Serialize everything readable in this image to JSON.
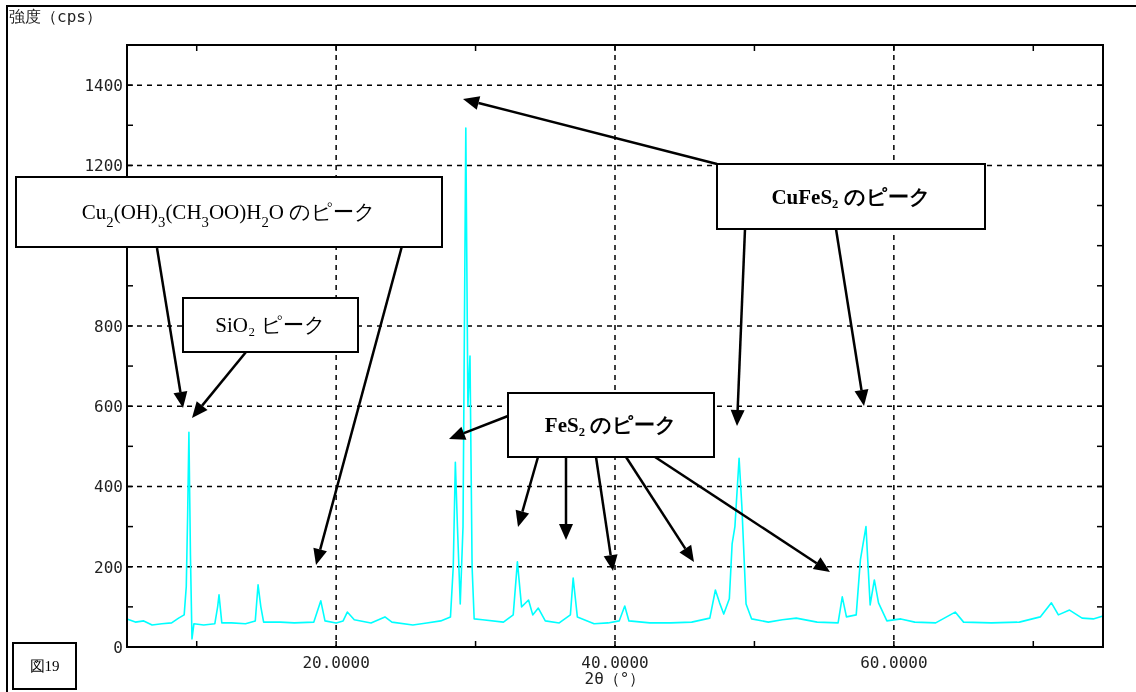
{
  "chart_data": {
    "type": "line",
    "xlabel": "2θ（°）",
    "ylabel": "強度（cps）",
    "x": [
      5,
      5.6,
      6.2,
      6.8,
      7.5,
      8.2,
      8.7,
      9.1,
      9.25,
      9.35,
      9.44,
      9.55,
      9.66,
      9.8,
      10.5,
      11.3,
      11.5,
      11.6,
      11.8,
      12.5,
      13.5,
      14.2,
      14.4,
      14.6,
      14.8,
      16,
      17,
      18.4,
      18.9,
      19.2,
      20,
      20.5,
      20.8,
      21.3,
      22.5,
      23.5,
      24,
      25.5,
      26.5,
      27.5,
      28.2,
      28.4,
      28.55,
      28.7,
      28.9,
      29.1,
      29.3,
      29.45,
      29.6,
      29.75,
      29.9,
      30.5,
      32,
      32.7,
      33.0,
      33.3,
      33.8,
      34.1,
      34.5,
      35,
      36,
      36.8,
      37.0,
      37.3,
      38.5,
      39.5,
      40.3,
      40.7,
      41,
      42.5,
      44,
      45.5,
      46.8,
      47.2,
      47.5,
      47.8,
      48.2,
      48.4,
      48.6,
      48.9,
      49.1,
      49.4,
      49.8,
      51,
      52,
      53,
      54.5,
      56,
      56.3,
      56.6,
      57.3,
      57.6,
      58.0,
      58.3,
      58.6,
      58.9,
      59.5,
      60.5,
      61.5,
      63,
      64.4,
      65,
      67,
      69,
      70.5,
      71.3,
      71.8,
      72.6,
      73.5,
      74.3,
      75
    ],
    "series": [
      {
        "color": "#00ffff",
        "values": [
          70,
          62,
          65,
          55,
          58,
          60,
          72,
          80,
          150,
          330,
          535,
          230,
          20,
          58,
          55,
          58,
          100,
          130,
          60,
          60,
          58,
          65,
          155,
          100,
          62,
          62,
          60,
          62,
          115,
          65,
          60,
          65,
          87,
          68,
          60,
          75,
          62,
          55,
          60,
          65,
          75,
          200,
          460,
          300,
          107,
          300,
          1293,
          600,
          725,
          200,
          70,
          68,
          62,
          80,
          212,
          100,
          117,
          80,
          97,
          65,
          60,
          80,
          172,
          75,
          58,
          60,
          65,
          102,
          65,
          60,
          60,
          62,
          72,
          142,
          110,
          82,
          120,
          257,
          300,
          470,
          350,
          107,
          70,
          62,
          68,
          72,
          62,
          60,
          125,
          75,
          80,
          217,
          300,
          105,
          167,
          110,
          65,
          70,
          62,
          60,
          87,
          62,
          60,
          62,
          75,
          110,
          80,
          92,
          72,
          70,
          77
        ]
      }
    ],
    "xlim": [
      5,
      75
    ],
    "ylim": [
      0,
      1500
    ],
    "xticks": [
      {
        "value": 10,
        "label": null
      },
      {
        "value": 20,
        "label": "20.0000"
      },
      {
        "value": 30,
        "label": null
      },
      {
        "value": 40,
        "label": "40.0000"
      },
      {
        "value": 50,
        "label": null
      },
      {
        "value": 60,
        "label": "60.0000"
      },
      {
        "value": 70,
        "label": null
      }
    ],
    "yticks": [
      0,
      {
        "value": 100,
        "label": null
      },
      200,
      {
        "value": 300,
        "label": null
      },
      400,
      {
        "value": 500,
        "label": null
      },
      600,
      {
        "value": 700,
        "label": null
      },
      800,
      {
        "value": 900,
        "label": null
      },
      {
        "value": 1000,
        "label": null
      },
      {
        "value": 1100,
        "label": null
      },
      1200,
      {
        "value": 1300,
        "label": null
      },
      1400
    ],
    "grid": true,
    "annotations": [
      "Cu$_{2}$(OH)$_{3}$(CH$_{3}$OO)H$_{2}$O のピーク",
      "SiO₂ ピーク",
      "CuFeS₂ のピーク",
      "FeS₂ のピーク",
      "図19"
    ]
  }
}
